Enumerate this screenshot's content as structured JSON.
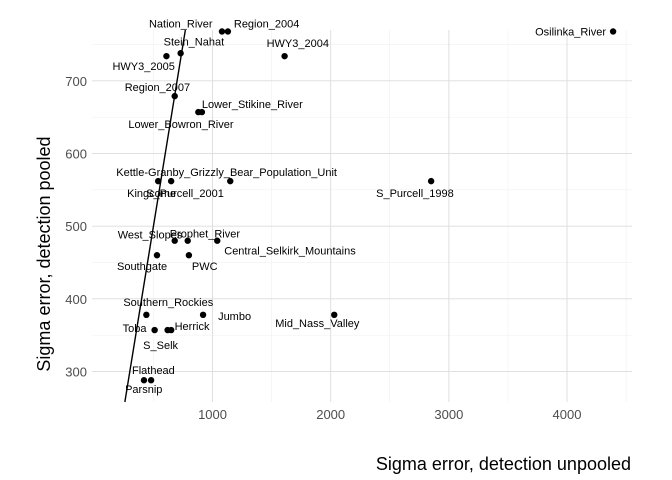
{
  "chart_data": {
    "type": "scatter",
    "xlabel": "Sigma error, detection unpooled",
    "ylabel": "Sigma error, detection pooled",
    "xlim": [
      -20,
      4550
    ],
    "ylim": [
      258,
      770
    ],
    "x_major": [
      1000,
      2000,
      3000,
      4000
    ],
    "x_minor": [
      500,
      1500,
      2500,
      3500,
      4500
    ],
    "y_major": [
      300,
      400,
      500,
      600,
      700
    ],
    "y_minor": [
      350,
      450,
      550,
      650,
      750
    ],
    "grid": true,
    "reference_line": {
      "type": "y=x"
    },
    "points": [
      {
        "label": "Osilinka_River",
        "x": 4390,
        "y": 768
      },
      {
        "label": "Nation_River",
        "x": 1080,
        "y": 768
      },
      {
        "label": "Region_2004",
        "x": 1130,
        "y": 768
      },
      {
        "label": "Stein_Nahat",
        "x": 730,
        "y": 738
      },
      {
        "label": "HWY3_2004",
        "x": 1610,
        "y": 734
      },
      {
        "label": "HWY3_2005",
        "x": 610,
        "y": 734
      },
      {
        "label": "Region_2007",
        "x": 680,
        "y": 679
      },
      {
        "label": "Lower_Stikine_River",
        "x": 910,
        "y": 657
      },
      {
        "label": "Lower_Bowron_River",
        "x": 880,
        "y": 657
      },
      {
        "label": "Kettle-Granby_Grizzly_Bear_Population_Unit",
        "x": 1150,
        "y": 562
      },
      {
        "label": "Kingcome",
        "x": 540,
        "y": 562
      },
      {
        "label": "S_Purcell_2001",
        "x": 650,
        "y": 562
      },
      {
        "label": "S_Purcell_1998",
        "x": 2850,
        "y": 562
      },
      {
        "label": "West_Slopes",
        "x": 680,
        "y": 480
      },
      {
        "label": "Prophet_River",
        "x": 790,
        "y": 480
      },
      {
        "label": "Central_Selkirk_Mountains",
        "x": 1040,
        "y": 480
      },
      {
        "label": "Southgate",
        "x": 530,
        "y": 460
      },
      {
        "label": "PWC",
        "x": 800,
        "y": 460
      },
      {
        "label": "Southern_Rockies",
        "x": 440,
        "y": 378
      },
      {
        "label": "Jumbo",
        "x": 920,
        "y": 378
      },
      {
        "label": "Mid_Nass_Valley",
        "x": 2030,
        "y": 378
      },
      {
        "label": "Toba",
        "x": 510,
        "y": 357
      },
      {
        "label": "Herrick",
        "x": 620,
        "y": 357
      },
      {
        "label": "S_Selk",
        "x": 650,
        "y": 357
      },
      {
        "label": "Flathead",
        "x": 420,
        "y": 288
      },
      {
        "label": "Parsnip",
        "x": 480,
        "y": 288
      }
    ]
  }
}
